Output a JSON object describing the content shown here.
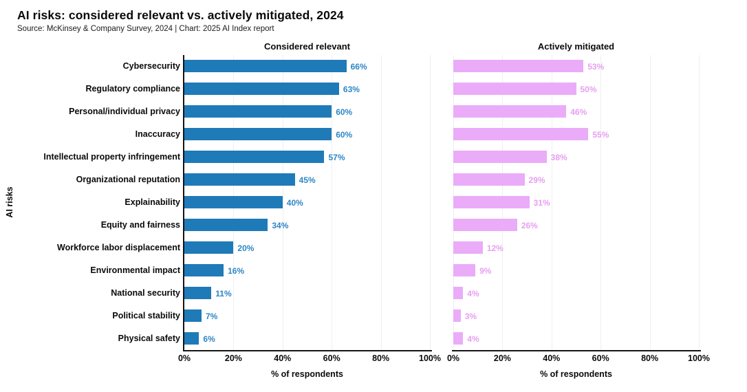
{
  "header": {
    "title": "AI risks: considered relevant vs. actively mitigated, 2024",
    "source": "Source: McKinsey & Company Survey, 2024 | Chart: 2025 AI Index report"
  },
  "chart_data": {
    "type": "bar",
    "orientation": "horizontal",
    "title": "AI risks: considered relevant vs. actively mitigated, 2024",
    "categories": [
      "Cybersecurity",
      "Regulatory compliance",
      "Personal/individual privacy",
      "Inaccuracy",
      "Intellectual property infringement",
      "Organizational reputation",
      "Explainability",
      "Equity and fairness",
      "Workforce labor displacement",
      "Environmental impact",
      "National security",
      "Political stability",
      "Physical safety"
    ],
    "series": [
      {
        "name": "Considered relevant",
        "color": "#1F7AB8",
        "label_color": "#2E86C7",
        "values": [
          66,
          63,
          60,
          60,
          57,
          45,
          40,
          34,
          20,
          16,
          11,
          7,
          6
        ]
      },
      {
        "name": "Actively mitigated",
        "color": "#EAACF8",
        "label_color": "#E79FF2",
        "values": [
          53,
          50,
          46,
          55,
          38,
          29,
          31,
          26,
          12,
          9,
          4,
          3,
          4
        ]
      }
    ],
    "xlabel": "% of respondents",
    "ylabel": "AI risks",
    "xlim": [
      0,
      100
    ],
    "xticks": [
      "0%",
      "20%",
      "40%",
      "60%",
      "80%",
      "100%"
    ],
    "grid": true,
    "gridline_color": "#efefef",
    "value_suffix": "%",
    "legend_position": "panel-titles"
  }
}
